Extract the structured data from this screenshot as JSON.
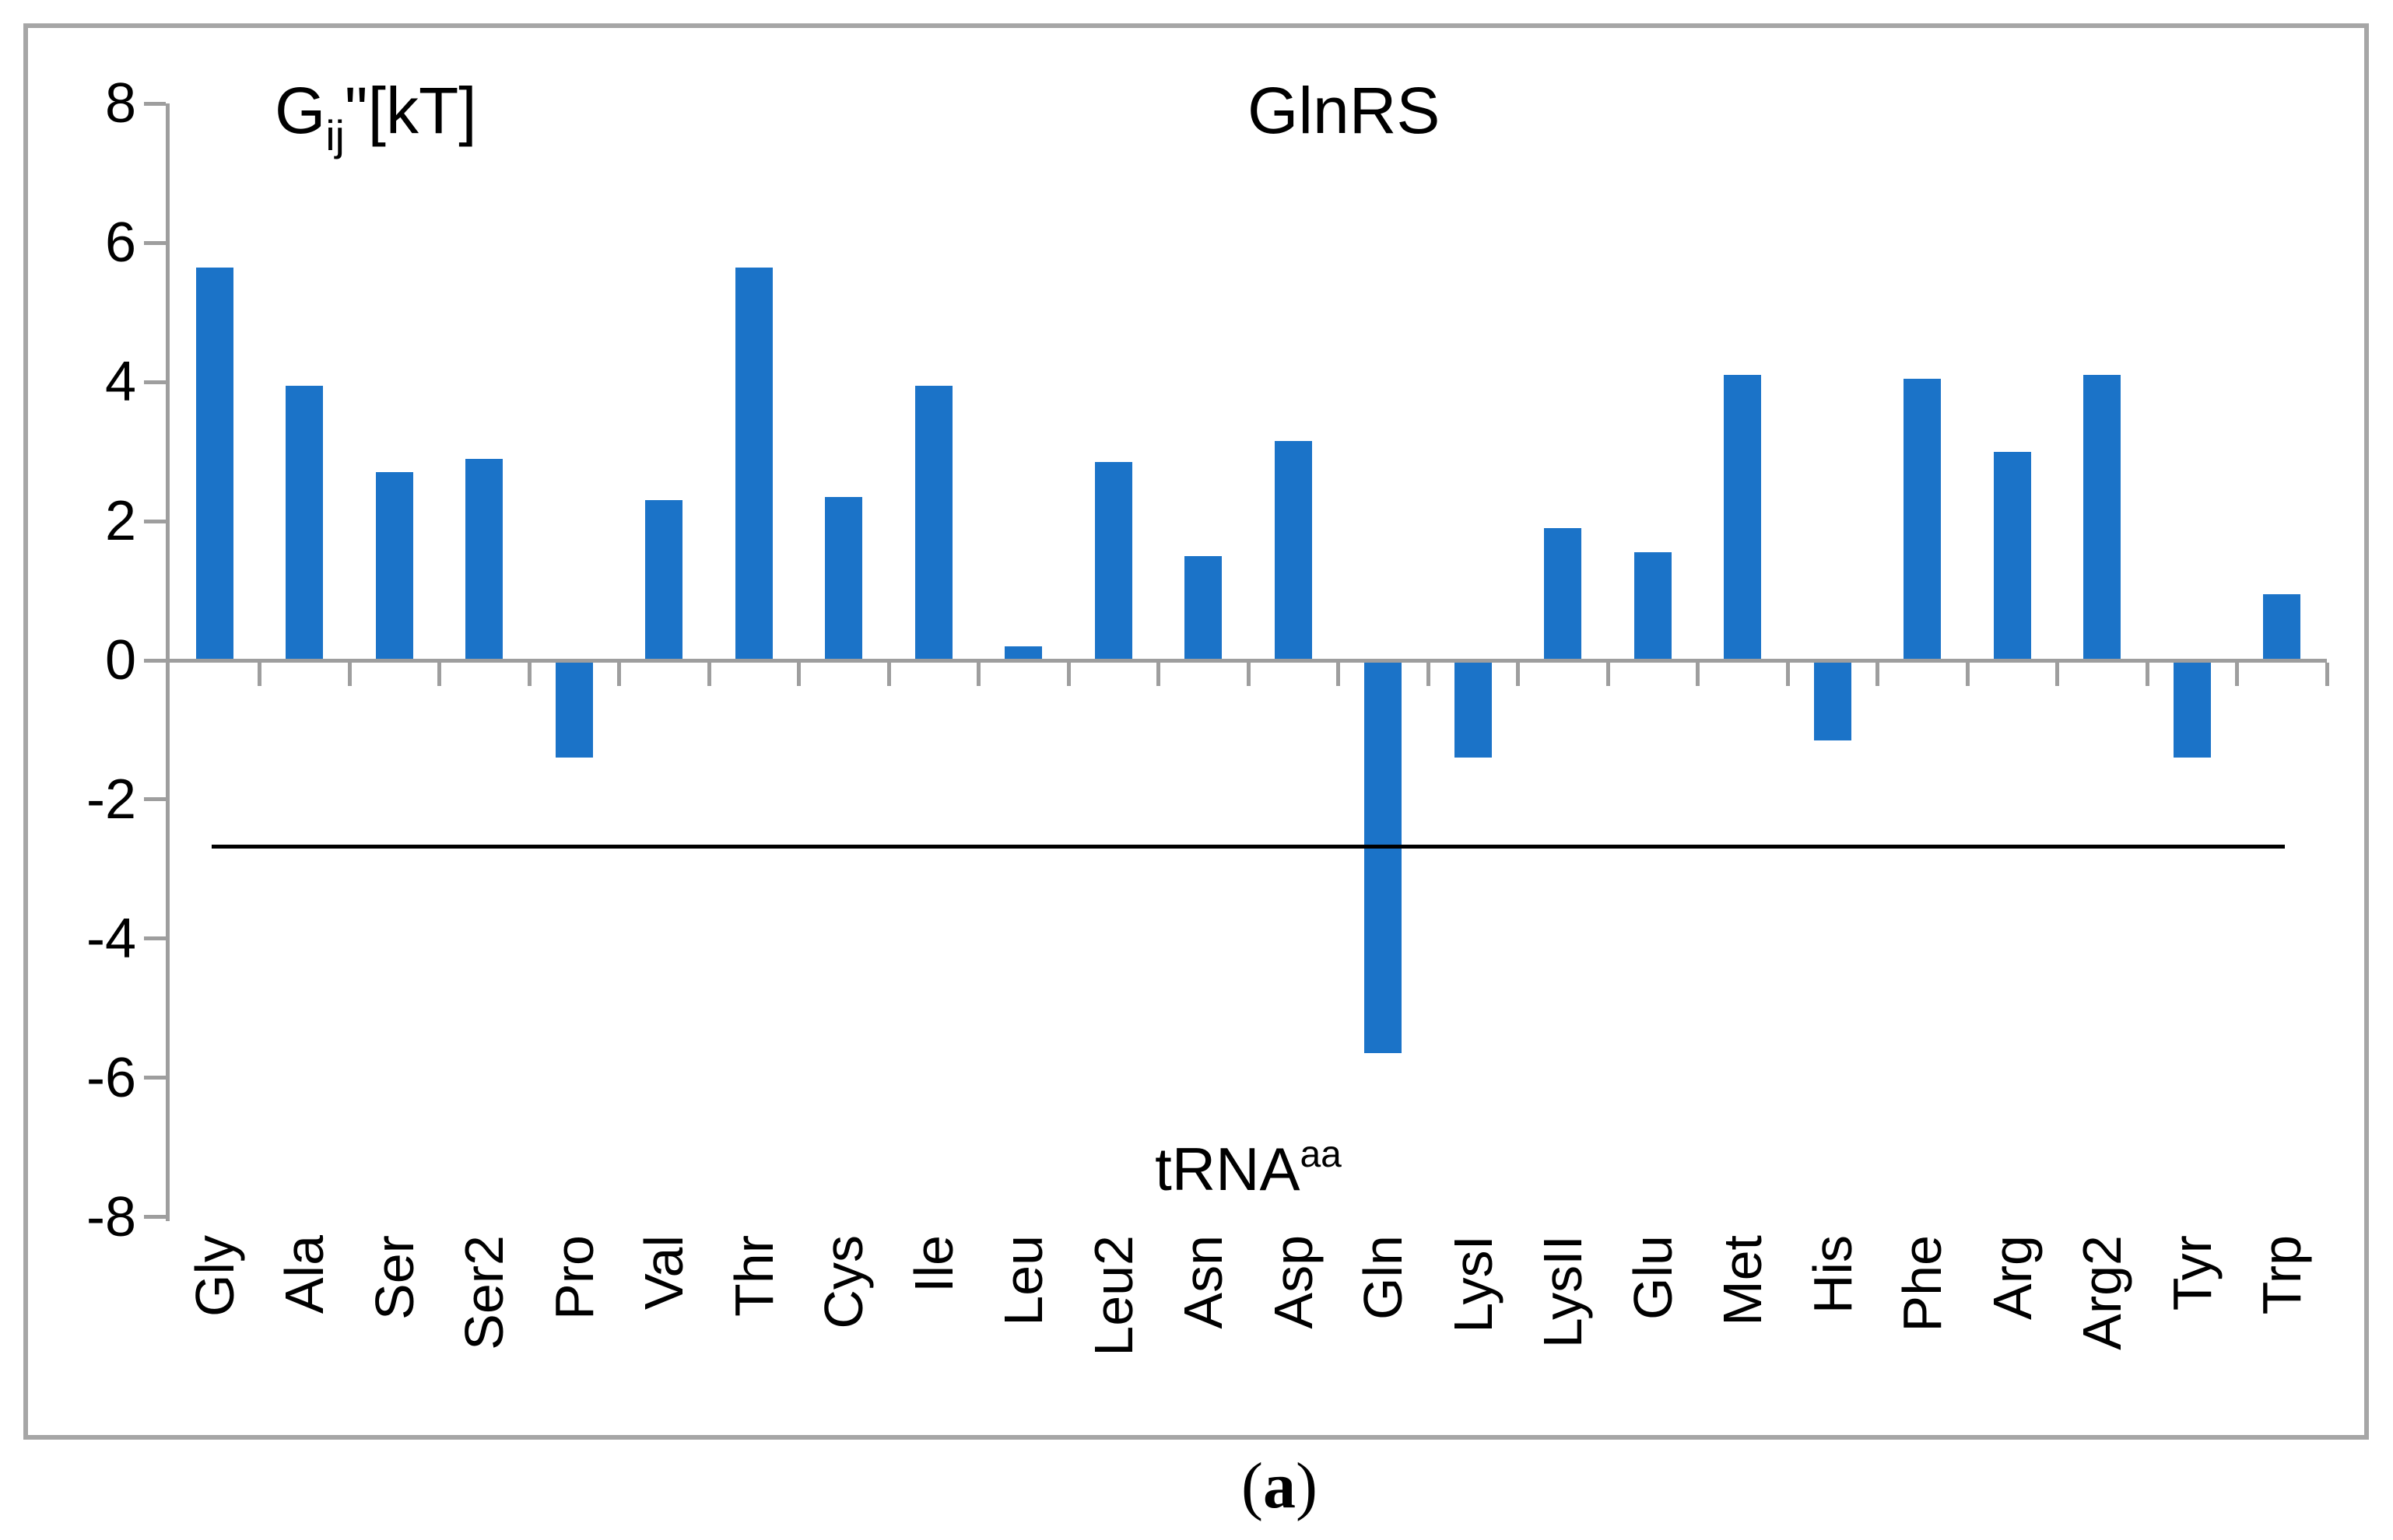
{
  "figure": {
    "chart_title": "GlnRS",
    "y_axis_title": {
      "base": "G",
      "subscript": "ij",
      "suffix": "\"[kT]"
    },
    "x_axis_title": {
      "base": "tRNA",
      "superscript": "aa"
    },
    "panel_label": {
      "prefix": "(",
      "letter": "a",
      "suffix": ")"
    }
  },
  "chart_data": {
    "type": "bar",
    "title": "GlnRS",
    "ylabel": "Gij\"[kT]",
    "xlabel": "tRNAaa",
    "categories": [
      "Gly",
      "Ala",
      "Ser",
      "Ser2",
      "Pro",
      "Val",
      "Thr",
      "Cys",
      "Ile",
      "Leu",
      "Leu2",
      "Asn",
      "Asp",
      "Gln",
      "LysI",
      "LysII",
      "Glu",
      "Met",
      "His",
      "Phe",
      "Arg",
      "Arg2",
      "Tyr",
      "Trp"
    ],
    "values": [
      5.65,
      3.95,
      2.7,
      2.9,
      -1.4,
      2.3,
      5.65,
      2.35,
      3.95,
      0.2,
      2.85,
      1.5,
      3.15,
      -5.65,
      -1.4,
      1.9,
      1.55,
      4.1,
      -1.15,
      4.05,
      3.0,
      4.1,
      -1.4,
      0.95
    ],
    "ylim": [
      -8,
      8
    ],
    "ytick_step": 2,
    "y_tick_labels": [
      "8",
      "6",
      "4",
      "2",
      "0",
      "-2",
      "-4",
      "-6",
      "-8"
    ],
    "reference_line_y": -2.67,
    "grid": false,
    "legend": null,
    "bar_color": "#1b73c8",
    "axis_color": "#9e9e9e",
    "frame_color": "#a6a6a6",
    "reference_line_color": "#000000"
  }
}
